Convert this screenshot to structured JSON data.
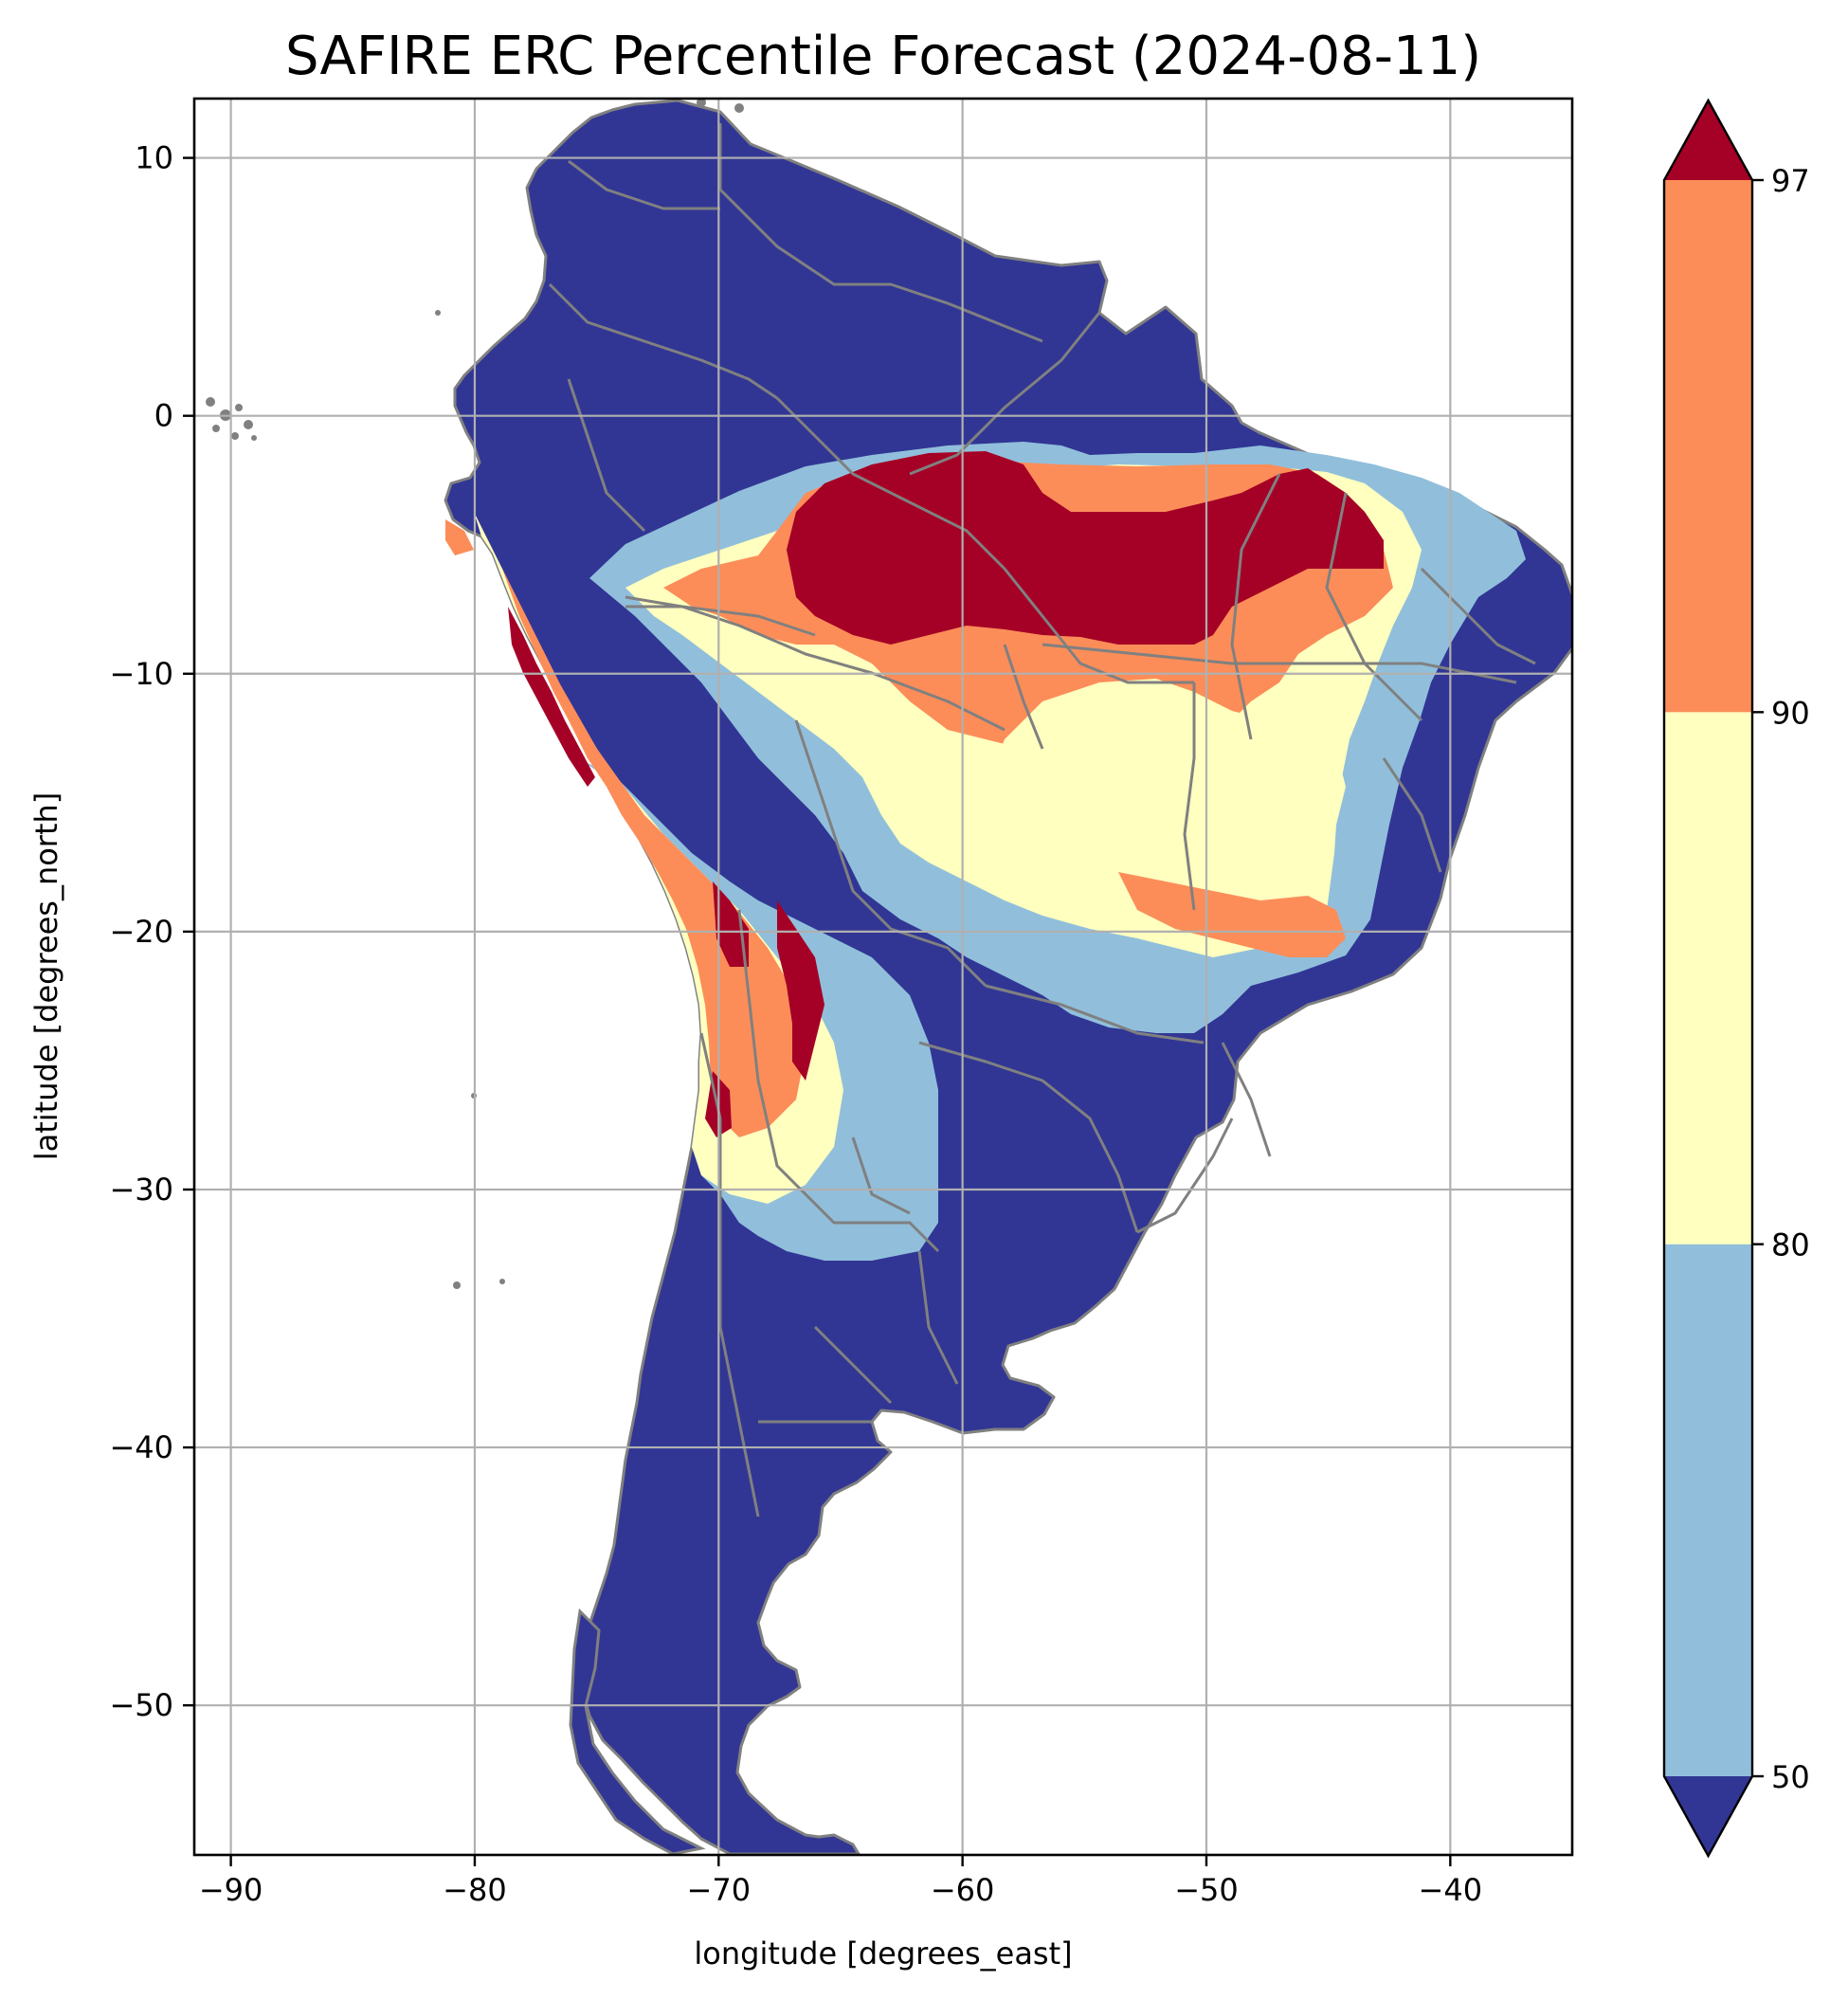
{
  "chart_data": {
    "type": "heatmap",
    "title": "SAFIRE ERC Percentile Forecast (2024-08-11)",
    "xlabel": "longitude [degrees_east]",
    "ylabel": "latitude [degrees_north]",
    "xlim": [
      -91.5,
      -35
    ],
    "ylim": [
      -55.8,
      12.3
    ],
    "x_ticks": [
      -90,
      -80,
      -70,
      -60,
      -50,
      -40
    ],
    "y_ticks": [
      10,
      0,
      -10,
      -20,
      -30,
      -40,
      -50
    ],
    "x_tick_labels": [
      "−90",
      "−80",
      "−70",
      "−60",
      "−50",
      "−40"
    ],
    "y_tick_labels": [
      "10",
      "0",
      "−10",
      "−20",
      "−30",
      "−40",
      "−50"
    ],
    "grid": true,
    "colorbar": {
      "levels": [
        50,
        80,
        90,
        97
      ],
      "tick_labels": [
        "50",
        "80",
        "90",
        "97"
      ],
      "extend": "both",
      "colors": {
        "under": "#313695",
        "50-80": "#91bfdb",
        "80-90": "#ffffbf",
        "90-97": "#fc8d59",
        "over": "#a50026"
      }
    },
    "colors": {
      "land_boundary": "#808080",
      "grid": "#b0b0b0"
    }
  }
}
